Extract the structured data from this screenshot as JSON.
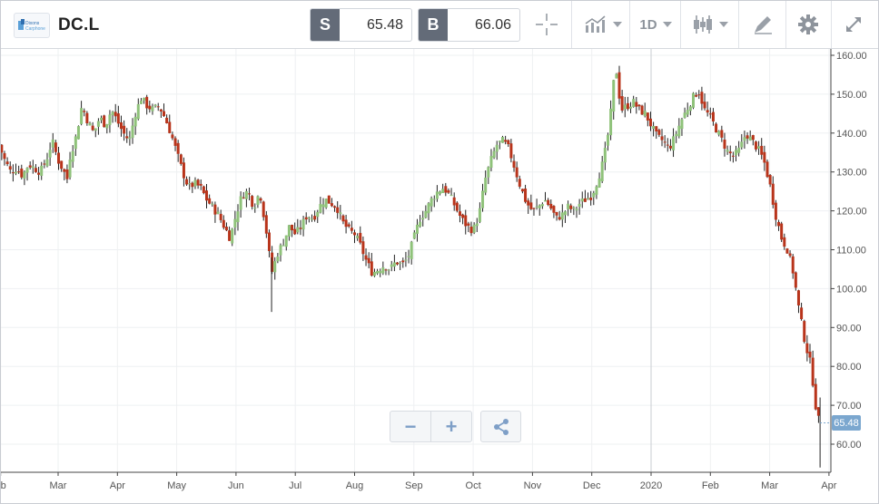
{
  "header": {
    "symbol": "DC.L",
    "logo_text": "Dixons Carphone",
    "sell_label": "S",
    "sell_price": "65.48",
    "buy_label": "B",
    "buy_price": "66.06",
    "timeframe": "1D"
  },
  "icons": {
    "logo": "company-logo",
    "crosshair": "crosshair-icon",
    "chart_type": "area-chart-icon",
    "candles": "candlestick-icon",
    "draw": "pen-icon",
    "settings": "gear-icon",
    "expand": "expand-icon",
    "zoom_out": "minus-icon",
    "zoom_in": "plus-icon",
    "share": "share-icon"
  },
  "controls": {
    "zoom_out_label": "−",
    "zoom_in_label": "+"
  },
  "last_price_tag": "65.48",
  "colors": {
    "up": "#8fc27a",
    "down": "#b8341b",
    "wick": "#222222",
    "grid": "#eef0f2",
    "last_price_tag": "#7ba7cf"
  },
  "chart_data": {
    "type": "candlestick",
    "y_ticks": [
      "160.00",
      "150.00",
      "140.00",
      "130.00",
      "120.00",
      "110.00",
      "100.00",
      "90.00",
      "80.00",
      "70.00",
      "60.00"
    ],
    "ylim": [
      53,
      163
    ],
    "x_ticks": [
      {
        "label": "eb",
        "month": 1.03
      },
      {
        "label": "Mar",
        "month": 2.0
      },
      {
        "label": "Apr",
        "month": 3.0
      },
      {
        "label": "May",
        "month": 4.0
      },
      {
        "label": "Jun",
        "month": 5.0
      },
      {
        "label": "Jul",
        "month": 6.0
      },
      {
        "label": "Aug",
        "month": 7.0
      },
      {
        "label": "Sep",
        "month": 8.0
      },
      {
        "label": "Oct",
        "month": 9.0
      },
      {
        "label": "Nov",
        "month": 10.0
      },
      {
        "label": "Dec",
        "month": 11.0
      },
      {
        "label": "2020",
        "month": 12.0
      },
      {
        "label": "Feb",
        "month": 13.0
      },
      {
        "label": "Mar",
        "month": 14.0
      },
      {
        "label": "Apr",
        "month": 15.0
      }
    ],
    "year_divider_month": 12.0,
    "last_price": 65.48,
    "close_path": [
      [
        1.0,
        137
      ],
      [
        1.1,
        133
      ],
      [
        1.2,
        130
      ],
      [
        1.3,
        131
      ],
      [
        1.4,
        129
      ],
      [
        1.5,
        132
      ],
      [
        1.6,
        131
      ],
      [
        1.7,
        130
      ],
      [
        1.8,
        133
      ],
      [
        1.9,
        138
      ],
      [
        2.0,
        133
      ],
      [
        2.1,
        130
      ],
      [
        2.15,
        128
      ],
      [
        2.2,
        134
      ],
      [
        2.3,
        139
      ],
      [
        2.4,
        147
      ],
      [
        2.5,
        143
      ],
      [
        2.6,
        140
      ],
      [
        2.7,
        144
      ],
      [
        2.8,
        142
      ],
      [
        2.9,
        146
      ],
      [
        3.0,
        143
      ],
      [
        3.1,
        140
      ],
      [
        3.2,
        138
      ],
      [
        3.3,
        145
      ],
      [
        3.4,
        149
      ],
      [
        3.5,
        147
      ],
      [
        3.6,
        146
      ],
      [
        3.7,
        147
      ],
      [
        3.8,
        144
      ],
      [
        3.9,
        140
      ],
      [
        4.0,
        135
      ],
      [
        4.1,
        130
      ],
      [
        4.2,
        126
      ],
      [
        4.3,
        127
      ],
      [
        4.4,
        126
      ],
      [
        4.5,
        123
      ],
      [
        4.6,
        121
      ],
      [
        4.7,
        119
      ],
      [
        4.8,
        116
      ],
      [
        4.9,
        113
      ],
      [
        5.0,
        119
      ],
      [
        5.1,
        124
      ],
      [
        5.2,
        125
      ],
      [
        5.3,
        121
      ],
      [
        5.4,
        125
      ],
      [
        5.5,
        116
      ],
      [
        5.6,
        104
      ],
      [
        5.7,
        109
      ],
      [
        5.8,
        112
      ],
      [
        5.9,
        116
      ],
      [
        6.0,
        114
      ],
      [
        6.1,
        116
      ],
      [
        6.2,
        119
      ],
      [
        6.3,
        118
      ],
      [
        6.4,
        121
      ],
      [
        6.5,
        123
      ],
      [
        6.6,
        122
      ],
      [
        6.7,
        121
      ],
      [
        6.8,
        117
      ],
      [
        6.9,
        115
      ],
      [
        7.0,
        114
      ],
      [
        7.1,
        111
      ],
      [
        7.2,
        107
      ],
      [
        7.3,
        104
      ],
      [
        7.4,
        105
      ],
      [
        7.5,
        106
      ],
      [
        7.6,
        105
      ],
      [
        7.7,
        107
      ],
      [
        7.8,
        106
      ],
      [
        7.9,
        108
      ],
      [
        8.0,
        113
      ],
      [
        8.1,
        118
      ],
      [
        8.2,
        120
      ],
      [
        8.3,
        123
      ],
      [
        8.4,
        125
      ],
      [
        8.5,
        126
      ],
      [
        8.6,
        124
      ],
      [
        8.7,
        121
      ],
      [
        8.8,
        118
      ],
      [
        8.9,
        116
      ],
      [
        9.0,
        115
      ],
      [
        9.1,
        119
      ],
      [
        9.2,
        128
      ],
      [
        9.3,
        133
      ],
      [
        9.4,
        137
      ],
      [
        9.5,
        138
      ],
      [
        9.6,
        136
      ],
      [
        9.7,
        131
      ],
      [
        9.8,
        126
      ],
      [
        9.9,
        122
      ],
      [
        10.0,
        120
      ],
      [
        10.1,
        121
      ],
      [
        10.2,
        123
      ],
      [
        10.3,
        121
      ],
      [
        10.4,
        118
      ],
      [
        10.5,
        119
      ],
      [
        10.6,
        121
      ],
      [
        10.7,
        120
      ],
      [
        10.8,
        122
      ],
      [
        10.9,
        123
      ],
      [
        11.0,
        124
      ],
      [
        11.1,
        128
      ],
      [
        11.2,
        133
      ],
      [
        11.3,
        142
      ],
      [
        11.4,
        158
      ],
      [
        11.45,
        151
      ],
      [
        11.5,
        146
      ],
      [
        11.6,
        147
      ],
      [
        11.7,
        148
      ],
      [
        11.8,
        146
      ],
      [
        11.9,
        145
      ],
      [
        12.0,
        142
      ],
      [
        12.1,
        139
      ],
      [
        12.2,
        138
      ],
      [
        12.3,
        136
      ],
      [
        12.4,
        139
      ],
      [
        12.5,
        143
      ],
      [
        12.6,
        146
      ],
      [
        12.7,
        149
      ],
      [
        12.8,
        151
      ],
      [
        12.9,
        146
      ],
      [
        13.0,
        144
      ],
      [
        13.1,
        141
      ],
      [
        13.2,
        138
      ],
      [
        13.3,
        135
      ],
      [
        13.4,
        134
      ],
      [
        13.5,
        136
      ],
      [
        13.6,
        140
      ],
      [
        13.7,
        138
      ],
      [
        13.8,
        136
      ],
      [
        13.9,
        133
      ],
      [
        14.0,
        127
      ],
      [
        14.1,
        119
      ],
      [
        14.2,
        113
      ],
      [
        14.3,
        110
      ],
      [
        14.4,
        104
      ],
      [
        14.5,
        94
      ],
      [
        14.6,
        86
      ],
      [
        14.7,
        80
      ],
      [
        14.75,
        73
      ],
      [
        14.8,
        67
      ],
      [
        14.85,
        65.48
      ]
    ]
  }
}
